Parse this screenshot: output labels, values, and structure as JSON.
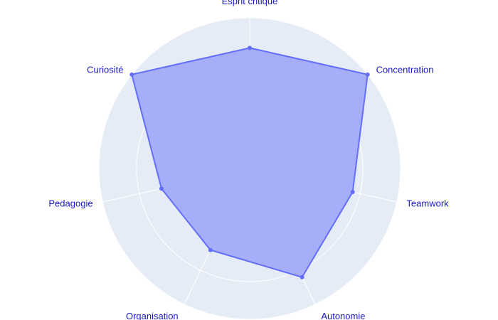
{
  "chart_data": {
    "type": "radar",
    "title": "",
    "categories": [
      "Esprit critique",
      "Concentration",
      "Teamwork",
      "Autonomie",
      "Organisation",
      "Pedagogie",
      "Curiosité"
    ],
    "series": [
      {
        "values": [
          8,
          10,
          7,
          8,
          6,
          6,
          10
        ]
      }
    ],
    "range": [
      0,
      10
    ],
    "grid": true,
    "legend": "none",
    "colors": {
      "polar_background": "#e5ecf6",
      "grid": "#ffffff",
      "series_line": "#636efa",
      "series_fill": "#a3abf9",
      "axis_label": "#1a1acc"
    }
  }
}
